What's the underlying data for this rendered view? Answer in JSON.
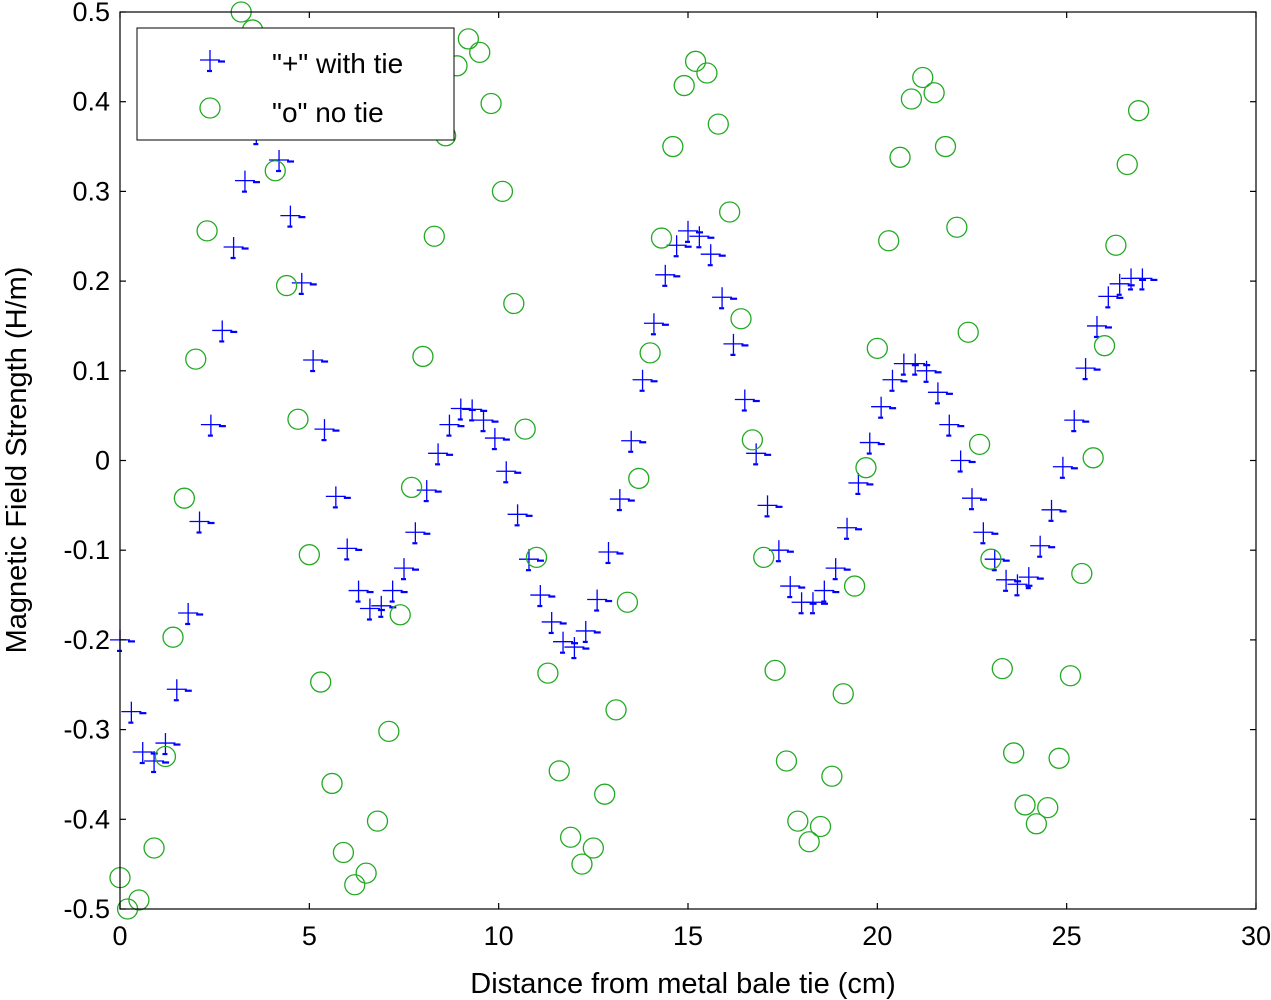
{
  "chart_data": {
    "type": "scatter",
    "xlabel": "Distance from metal bale tie (cm)",
    "ylabel": "Magnetic Field Strength (H/m)",
    "xlim": [
      0,
      30
    ],
    "ylim": [
      -0.5,
      0.5
    ],
    "xticks": [
      0,
      5,
      10,
      15,
      20,
      25,
      30
    ],
    "yticks": [
      -0.5,
      -0.4,
      -0.3,
      -0.2,
      -0.1,
      0,
      0.1,
      0.2,
      0.3,
      0.4,
      0.5
    ],
    "x_tick_labels": [
      "0",
      "5",
      "10",
      "15",
      "20",
      "25",
      "30"
    ],
    "y_tick_labels": [
      "-0.5",
      "-0.4",
      "-0.3",
      "-0.2",
      "-0.1",
      "0",
      "0.1",
      "0.2",
      "0.3",
      "0.4",
      "0.5"
    ],
    "grid": false,
    "legend_position": "top-left",
    "series": [
      {
        "name": "\"+\" with tie",
        "marker": "plus",
        "color": "#0000ff",
        "x": [
          0.0,
          0.3,
          0.6,
          0.9,
          1.2,
          1.5,
          1.8,
          2.1,
          2.4,
          2.7,
          3.0,
          3.3,
          3.6,
          3.9,
          4.2,
          4.5,
          4.8,
          5.1,
          5.4,
          5.7,
          6.0,
          6.3,
          6.6,
          6.9,
          7.2,
          7.5,
          7.8,
          8.1,
          8.4,
          8.7,
          9.0,
          9.3,
          9.6,
          9.9,
          10.2,
          10.5,
          10.8,
          11.1,
          11.4,
          11.7,
          12.0,
          12.3,
          12.6,
          12.9,
          13.2,
          13.5,
          13.8,
          14.1,
          14.4,
          14.7,
          15.0,
          15.3,
          15.6,
          15.9,
          16.2,
          16.5,
          16.8,
          17.1,
          17.4,
          17.7,
          18.0,
          18.3,
          18.6,
          18.9,
          19.2,
          19.5,
          19.8,
          20.1,
          20.4,
          20.7,
          21.0,
          21.3,
          21.6,
          21.9,
          22.2,
          22.5,
          22.8,
          23.1,
          23.4,
          23.7,
          24.0,
          24.3,
          24.6,
          24.9,
          25.2,
          25.5,
          25.8,
          26.1,
          26.4,
          26.7,
          27.0
        ],
        "y": [
          -0.2,
          -0.28,
          -0.325,
          -0.335,
          -0.315,
          -0.255,
          -0.17,
          -0.068,
          0.04,
          0.145,
          0.238,
          0.312,
          0.365,
          0.375,
          0.335,
          0.273,
          0.198,
          0.112,
          0.035,
          -0.04,
          -0.098,
          -0.145,
          -0.165,
          -0.162,
          -0.145,
          -0.12,
          -0.08,
          -0.033,
          0.008,
          0.04,
          0.058,
          0.057,
          0.045,
          0.025,
          -0.012,
          -0.06,
          -0.11,
          -0.15,
          -0.18,
          -0.202,
          -0.208,
          -0.19,
          -0.155,
          -0.102,
          -0.043,
          0.022,
          0.09,
          0.153,
          0.207,
          0.24,
          0.256,
          0.25,
          0.23,
          0.182,
          0.13,
          0.068,
          0.008,
          -0.05,
          -0.1,
          -0.14,
          -0.158,
          -0.158,
          -0.145,
          -0.12,
          -0.075,
          -0.025,
          0.02,
          0.06,
          0.09,
          0.108,
          0.108,
          0.1,
          0.076,
          0.04,
          0.0,
          -0.042,
          -0.08,
          -0.11,
          -0.133,
          -0.138,
          -0.13,
          -0.095,
          -0.055,
          -0.007,
          0.045,
          0.103,
          0.15,
          0.183,
          0.197,
          0.203,
          0.203
        ]
      },
      {
        "name": "\"o\" no tie",
        "marker": "circle",
        "color": "#22aa22",
        "x": [
          0.0,
          0.2,
          0.5,
          0.9,
          1.2,
          1.4,
          1.7,
          2.0,
          2.3,
          2.6,
          2.9,
          3.2,
          3.5,
          3.8,
          4.1,
          4.4,
          4.7,
          5.0,
          5.3,
          5.6,
          5.9,
          6.2,
          6.5,
          6.8,
          7.1,
          7.4,
          7.7,
          8.0,
          8.3,
          8.6,
          8.9,
          9.2,
          9.5,
          9.8,
          10.1,
          10.4,
          10.7,
          11.0,
          11.3,
          11.6,
          11.9,
          12.2,
          12.5,
          12.8,
          13.1,
          13.4,
          13.7,
          14.0,
          14.3,
          14.6,
          14.9,
          15.2,
          15.5,
          15.8,
          16.1,
          16.4,
          16.7,
          17.0,
          17.3,
          17.6,
          17.9,
          18.2,
          18.5,
          18.8,
          19.1,
          19.4,
          19.7,
          20.0,
          20.3,
          20.6,
          20.9,
          21.2,
          21.5,
          21.8,
          22.1,
          22.4,
          22.7,
          23.0,
          23.3,
          23.6,
          23.9,
          24.2,
          24.5,
          24.8,
          25.1,
          25.4,
          25.7,
          26.0,
          26.3,
          26.6,
          26.9
        ],
        "y": [
          -0.465,
          -0.5,
          -0.49,
          -0.432,
          -0.33,
          -0.197,
          -0.042,
          0.113,
          0.256,
          0.382,
          0.47,
          0.5,
          0.48,
          0.42,
          0.323,
          0.195,
          0.046,
          -0.105,
          -0.247,
          -0.36,
          -0.437,
          -0.473,
          -0.46,
          -0.402,
          -0.302,
          -0.172,
          -0.03,
          0.116,
          0.25,
          0.362,
          0.44,
          0.47,
          0.455,
          0.398,
          0.3,
          0.175,
          0.035,
          -0.108,
          -0.237,
          -0.346,
          -0.42,
          -0.45,
          -0.432,
          -0.372,
          -0.278,
          -0.158,
          -0.02,
          0.12,
          0.248,
          0.35,
          0.418,
          0.445,
          0.432,
          0.375,
          0.277,
          0.158,
          0.023,
          -0.108,
          -0.234,
          -0.335,
          -0.402,
          -0.425,
          -0.408,
          -0.352,
          -0.26,
          -0.14,
          -0.008,
          0.125,
          0.245,
          0.338,
          0.403,
          0.427,
          0.41,
          0.35,
          0.26,
          0.143,
          0.018,
          -0.11,
          -0.232,
          -0.326,
          -0.384,
          -0.405,
          -0.387,
          -0.332,
          -0.24,
          -0.126,
          0.003,
          0.128,
          0.24,
          0.33,
          0.39
        ]
      }
    ]
  }
}
